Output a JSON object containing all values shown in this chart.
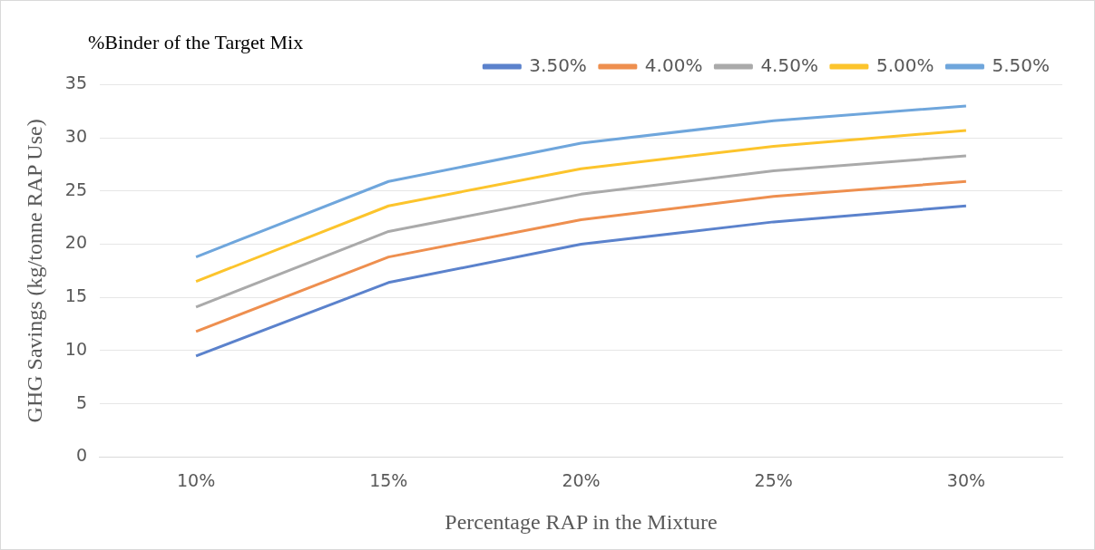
{
  "chart_data": {
    "type": "line",
    "xlabel": "Percentage RAP in the Mixture",
    "ylabel": "GHG Savings (kg/tonne RAP Use)",
    "legend_title": "%Binder of the Target Mix",
    "categories": [
      "10%",
      "15%",
      "20%",
      "25%",
      "30%"
    ],
    "series": [
      {
        "name": "3.50%",
        "color": "#5b82cc",
        "values": [
          9.5,
          16.4,
          20.0,
          22.1,
          23.6
        ]
      },
      {
        "name": "4.00%",
        "color": "#ee8f4f",
        "values": [
          11.8,
          18.8,
          22.3,
          24.5,
          25.9
        ]
      },
      {
        "name": "4.50%",
        "color": "#aaaaaa",
        "values": [
          14.1,
          21.2,
          24.7,
          26.9,
          28.3
        ]
      },
      {
        "name": "5.00%",
        "color": "#fcc42c",
        "values": [
          16.5,
          23.6,
          27.1,
          29.2,
          30.7
        ]
      },
      {
        "name": "5.50%",
        "color": "#6fa6dc",
        "values": [
          18.8,
          25.9,
          29.5,
          31.6,
          33.0
        ]
      }
    ],
    "ylim": [
      0,
      35
    ],
    "yticks": [
      0,
      5,
      10,
      15,
      20,
      25,
      30,
      35
    ],
    "grid": "y",
    "legend": "top right",
    "marker": "none",
    "line_style": "solid"
  }
}
